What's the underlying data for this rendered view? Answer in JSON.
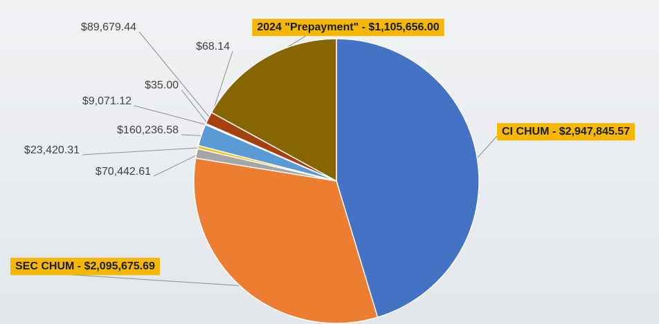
{
  "chart_data": {
    "type": "pie",
    "values": [
      2947845.57,
      2095675.69,
      70442.61,
      23420.31,
      160236.58,
      9071.12,
      35.0,
      68.14,
      89679.44,
      1105656.0
    ],
    "value_labels": [
      "CI CHUM - $2,947,845.57",
      "SEC CHUM - $2,095,675.69",
      "$70,442.61",
      "$23,420.31",
      "$160,236.58",
      "$9,071.12",
      "$35.00",
      "$68.14",
      "$89,679.44",
      "2024 \"Prepayment\"  - $1,105,656.00"
    ],
    "colors": [
      "#4472c4",
      "#ed7d31",
      "#a5a5a5",
      "#ffc000",
      "#5b9bd5",
      "#70ad47",
      "#264478",
      "#9e480e",
      "#a5400f",
      "#876500"
    ]
  }
}
